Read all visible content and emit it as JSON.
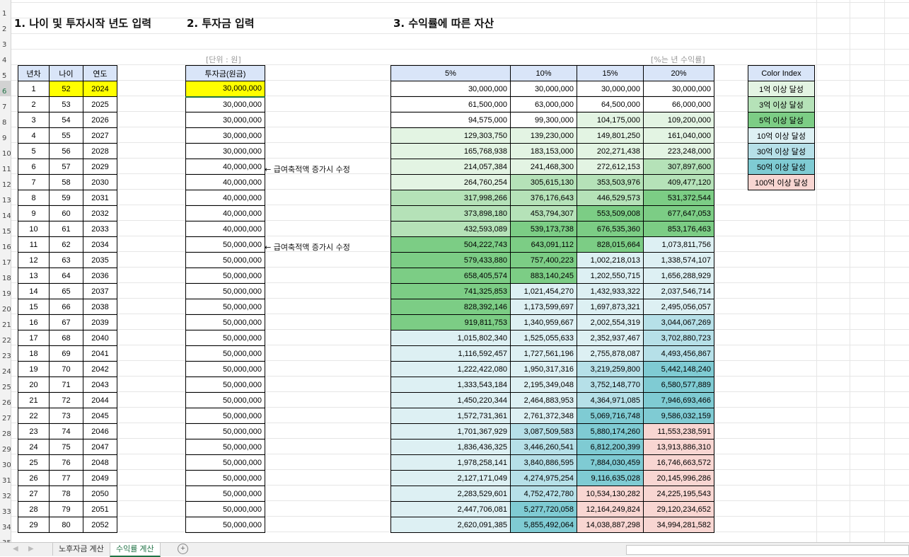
{
  "titles": {
    "section1": "1. 나이 및 투자시작 년도 입력",
    "section2": "2. 투자금 입력",
    "section3": "3. 수익률에 따른 자산"
  },
  "notes": {
    "unit": "[단위 : 원]",
    "rate": "[%는 년 수익률]"
  },
  "comments": {
    "row11": "← 급여축적액 증가시 수정",
    "row16": "← 급여축적액 증가시 수정"
  },
  "colors": {
    "header_bg": "#d9e5f8",
    "input_yellow": "#ffff00",
    "tier_1": "#e3f4e3",
    "tier_3": "#b5e2b8",
    "tier_5": "#7ccd85",
    "tier_10": "#ddf0f3",
    "tier_30": "#b6e0e8",
    "tier_50": "#7fcbd3",
    "tier_100": "#f8d6d2",
    "sheet_green": "#217346"
  },
  "table1": {
    "headers": [
      "년차",
      "나이",
      "연도"
    ],
    "rows": [
      [
        "1",
        "52",
        "2024"
      ],
      [
        "2",
        "53",
        "2025"
      ],
      [
        "3",
        "54",
        "2026"
      ],
      [
        "4",
        "55",
        "2027"
      ],
      [
        "5",
        "56",
        "2028"
      ],
      [
        "6",
        "57",
        "2029"
      ],
      [
        "7",
        "58",
        "2030"
      ],
      [
        "8",
        "59",
        "2031"
      ],
      [
        "9",
        "60",
        "2032"
      ],
      [
        "10",
        "61",
        "2033"
      ],
      [
        "11",
        "62",
        "2034"
      ],
      [
        "12",
        "63",
        "2035"
      ],
      [
        "13",
        "64",
        "2036"
      ],
      [
        "14",
        "65",
        "2037"
      ],
      [
        "15",
        "66",
        "2038"
      ],
      [
        "16",
        "67",
        "2039"
      ],
      [
        "17",
        "68",
        "2040"
      ],
      [
        "18",
        "69",
        "2041"
      ],
      [
        "19",
        "70",
        "2042"
      ],
      [
        "20",
        "71",
        "2043"
      ],
      [
        "21",
        "72",
        "2044"
      ],
      [
        "22",
        "73",
        "2045"
      ],
      [
        "23",
        "74",
        "2046"
      ],
      [
        "24",
        "75",
        "2047"
      ],
      [
        "25",
        "76",
        "2048"
      ],
      [
        "26",
        "77",
        "2049"
      ],
      [
        "27",
        "78",
        "2050"
      ],
      [
        "28",
        "79",
        "2051"
      ],
      [
        "29",
        "80",
        "2052"
      ]
    ]
  },
  "table2": {
    "header": "투자금(원금)",
    "values": [
      "30,000,000",
      "30,000,000",
      "30,000,000",
      "30,000,000",
      "30,000,000",
      "40,000,000",
      "40,000,000",
      "40,000,000",
      "40,000,000",
      "40,000,000",
      "50,000,000",
      "50,000,000",
      "50,000,000",
      "50,000,000",
      "50,000,000",
      "50,000,000",
      "50,000,000",
      "50,000,000",
      "50,000,000",
      "50,000,000",
      "50,000,000",
      "50,000,000",
      "50,000,000",
      "50,000,000",
      "50,000,000",
      "50,000,000",
      "50,000,000",
      "50,000,000",
      "50,000,000"
    ]
  },
  "table3": {
    "headers": [
      "5%",
      "10%",
      "15%",
      "20%"
    ],
    "rows": [
      [
        "30,000,000",
        "30,000,000",
        "30,000,000",
        "30,000,000"
      ],
      [
        "61,500,000",
        "63,000,000",
        "64,500,000",
        "66,000,000"
      ],
      [
        "94,575,000",
        "99,300,000",
        "104,175,000",
        "109,200,000"
      ],
      [
        "129,303,750",
        "139,230,000",
        "149,801,250",
        "161,040,000"
      ],
      [
        "165,768,938",
        "183,153,000",
        "202,271,438",
        "223,248,000"
      ],
      [
        "214,057,384",
        "241,468,300",
        "272,612,153",
        "307,897,600"
      ],
      [
        "264,760,254",
        "305,615,130",
        "353,503,976",
        "409,477,120"
      ],
      [
        "317,998,266",
        "376,176,643",
        "446,529,573",
        "531,372,544"
      ],
      [
        "373,898,180",
        "453,794,307",
        "553,509,008",
        "677,647,053"
      ],
      [
        "432,593,089",
        "539,173,738",
        "676,535,360",
        "853,176,463"
      ],
      [
        "504,222,743",
        "643,091,112",
        "828,015,664",
        "1,073,811,756"
      ],
      [
        "579,433,880",
        "757,400,223",
        "1,002,218,013",
        "1,338,574,107"
      ],
      [
        "658,405,574",
        "883,140,245",
        "1,202,550,715",
        "1,656,288,929"
      ],
      [
        "741,325,853",
        "1,021,454,270",
        "1,432,933,322",
        "2,037,546,714"
      ],
      [
        "828,392,146",
        "1,173,599,697",
        "1,697,873,321",
        "2,495,056,057"
      ],
      [
        "919,811,753",
        "1,340,959,667",
        "2,002,554,319",
        "3,044,067,269"
      ],
      [
        "1,015,802,340",
        "1,525,055,633",
        "2,352,937,467",
        "3,702,880,723"
      ],
      [
        "1,116,592,457",
        "1,727,561,196",
        "2,755,878,087",
        "4,493,456,867"
      ],
      [
        "1,222,422,080",
        "1,950,317,316",
        "3,219,259,800",
        "5,442,148,240"
      ],
      [
        "1,333,543,184",
        "2,195,349,048",
        "3,752,148,770",
        "6,580,577,889"
      ],
      [
        "1,450,220,344",
        "2,464,883,953",
        "4,364,971,085",
        "7,946,693,466"
      ],
      [
        "1,572,731,361",
        "2,761,372,348",
        "5,069,716,748",
        "9,586,032,159"
      ],
      [
        "1,701,367,929",
        "3,087,509,583",
        "5,880,174,260",
        "11,553,238,591"
      ],
      [
        "1,836,436,325",
        "3,446,260,541",
        "6,812,200,399",
        "13,913,886,310"
      ],
      [
        "1,978,258,141",
        "3,840,886,595",
        "7,884,030,459",
        "16,746,663,572"
      ],
      [
        "2,127,171,049",
        "4,274,975,254",
        "9,116,635,028",
        "20,145,996,286"
      ],
      [
        "2,283,529,601",
        "4,752,472,780",
        "10,534,130,282",
        "24,225,195,543"
      ],
      [
        "2,447,706,081",
        "5,277,720,058",
        "12,164,249,824",
        "29,120,234,652"
      ],
      [
        "2,620,091,385",
        "5,855,492,064",
        "14,038,887,298",
        "34,994,281,582"
      ]
    ]
  },
  "color_index": {
    "header": "Color Index",
    "items": [
      "1억 이상 달성",
      "3억 이상 달성",
      "5억 이상 달성",
      "10억 이상 달성",
      "30억 이상 달성",
      "50억 이상 달성",
      "100억 이상 달성"
    ],
    "tiers": [
      "tier_1",
      "tier_3",
      "tier_5",
      "tier_10",
      "tier_30",
      "tier_50",
      "tier_100"
    ]
  },
  "sheet_tabs": {
    "tabs": [
      "노후자금 계산",
      "수익률 계산"
    ],
    "active_index": 1,
    "nav_prev": "◀",
    "nav_next": "▶",
    "add_label": "+"
  },
  "active_row": "6"
}
